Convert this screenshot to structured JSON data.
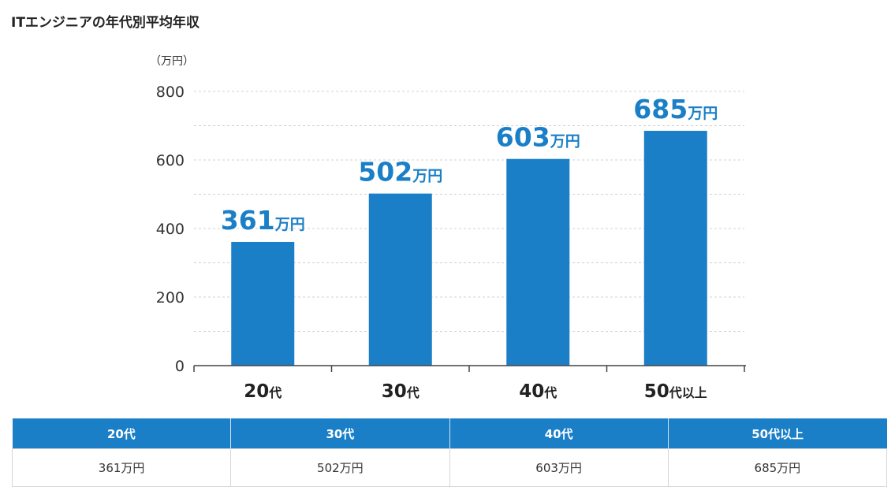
{
  "title": "ITエンジニアの年代別平均年収",
  "chart_data": {
    "type": "bar",
    "title": "ITエンジニアの年代別平均年収",
    "unit_label": "（万円）",
    "categories": [
      {
        "num": "20",
        "suffix": "代"
      },
      {
        "num": "30",
        "suffix": "代"
      },
      {
        "num": "40",
        "suffix": "代"
      },
      {
        "num": "50",
        "suffix": "代以上"
      }
    ],
    "values": [
      361,
      502,
      603,
      685
    ],
    "value_unit": "万円",
    "ylim": [
      0,
      800
    ],
    "yticks": [
      "0",
      "200",
      "400",
      "600",
      "800"
    ],
    "grid": true,
    "bar_color": "#1a7fc7",
    "label_color": "#1a7fc7"
  },
  "table": {
    "headers": [
      "20代",
      "30代",
      "40代",
      "50代以上"
    ],
    "values": [
      "361万円",
      "502万円",
      "603万円",
      "685万円"
    ]
  },
  "colors": {
    "accent": "#1a7fc7"
  }
}
